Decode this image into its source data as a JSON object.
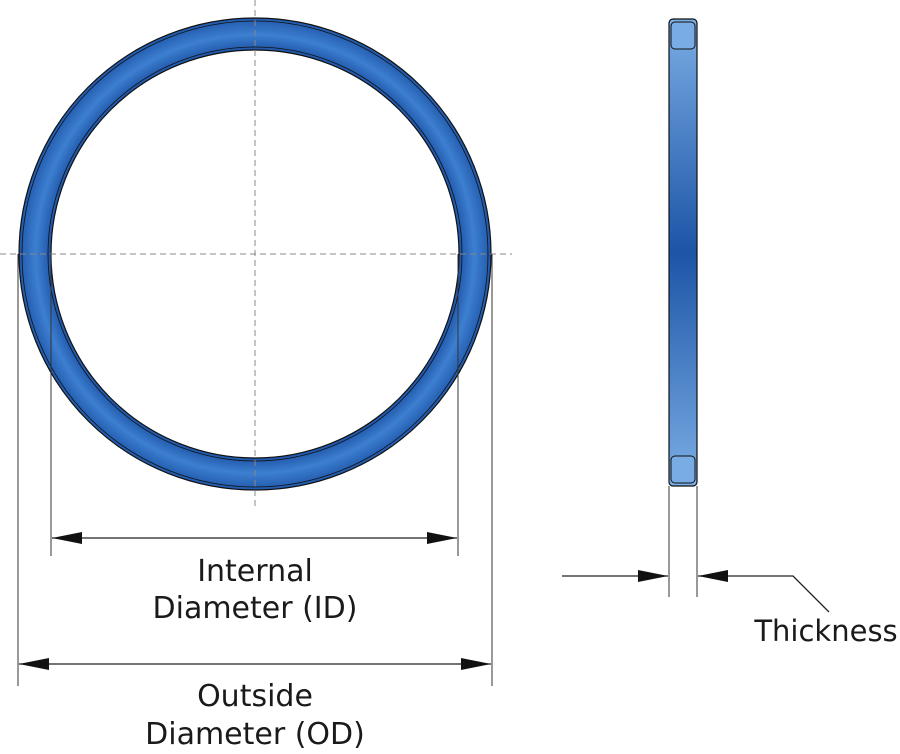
{
  "labels": {
    "internal_line1": "Internal",
    "internal_line2": "Diameter (ID)",
    "outside_line1": "Outside",
    "outside_line2": "Diameter (OD)",
    "thickness": "Thickness"
  },
  "colors": {
    "ring_blue": "#2f6fc0",
    "ring_blue_dark": "#1e55a8",
    "ring_blue_light": "#78abe3",
    "outline": "#111111"
  }
}
